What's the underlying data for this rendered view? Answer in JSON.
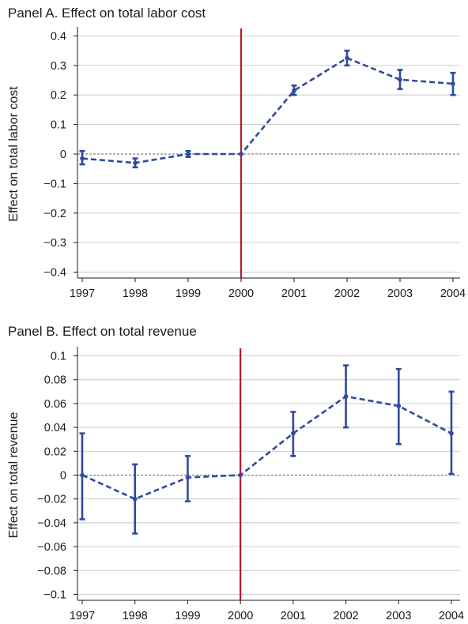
{
  "chart_data": [
    {
      "type": "line",
      "title": "Panel A. Effect on total labor cost",
      "xlabel": "",
      "ylabel": "Effect on total labor cost",
      "x": [
        1997,
        1998,
        1999,
        2000,
        2001,
        2002,
        2003,
        2004
      ],
      "xticks": [
        "1997",
        "1998",
        "1999",
        "2000",
        "2001",
        "2002",
        "2003",
        "2004"
      ],
      "yticks": [
        0.4,
        0.3,
        0.2,
        0.1,
        0,
        -0.1,
        -0.2,
        -0.3,
        -0.4
      ],
      "ytick_labels": [
        "0.4",
        "0.3",
        "0.2",
        "0.1",
        "0",
        "−0.1",
        "−0.2",
        "−0.3",
        "−0.4"
      ],
      "ylim": [
        -0.42,
        0.42
      ],
      "reference_line_x": 2000,
      "zero_line": true,
      "grid": true,
      "series": [
        {
          "values": [
            -0.015,
            -0.03,
            0.0,
            0.0,
            0.215,
            0.325,
            0.252,
            0.238
          ],
          "ci_low": [
            -0.035,
            -0.045,
            -0.01,
            0.0,
            0.2,
            0.3,
            0.22,
            0.2
          ],
          "ci_high": [
            0.01,
            -0.015,
            0.01,
            0.0,
            0.232,
            0.35,
            0.285,
            0.275
          ]
        }
      ]
    },
    {
      "type": "line",
      "title": "Panel B. Effect on total revenue",
      "xlabel": "",
      "ylabel": "Effect on total revenue",
      "x": [
        1997,
        1998,
        1999,
        2000,
        2001,
        2002,
        2003,
        2004
      ],
      "xticks": [
        "1997",
        "1998",
        "1999",
        "2000",
        "2001",
        "2002",
        "2003",
        "2004"
      ],
      "yticks": [
        0.1,
        0.08,
        0.06,
        0.04,
        0.02,
        0,
        -0.02,
        -0.04,
        -0.06,
        -0.08,
        -0.1
      ],
      "ytick_labels": [
        "0.1",
        "0.08",
        "0.06",
        "0.04",
        "0.02",
        "0",
        "−0.02",
        "−0.04",
        "−0.06",
        "−0.08",
        "−0.1"
      ],
      "ylim": [
        -0.105,
        0.105
      ],
      "reference_line_x": 2000,
      "zero_line": true,
      "grid": true,
      "series": [
        {
          "values": [
            0.0,
            -0.02,
            -0.002,
            0.0,
            0.035,
            0.066,
            0.058,
            0.035
          ],
          "ci_low": [
            -0.037,
            -0.049,
            -0.022,
            0.0,
            0.016,
            0.04,
            0.026,
            0.001
          ],
          "ci_high": [
            0.035,
            0.009,
            0.016,
            0.0,
            0.053,
            0.092,
            0.089,
            0.07
          ]
        }
      ]
    }
  ],
  "colors": {
    "series": "#2f4a9e",
    "reference_line": "#c0142e",
    "grid": "#c8c8c8",
    "axis": "#1a1a1a",
    "zero_line": "#666666"
  }
}
